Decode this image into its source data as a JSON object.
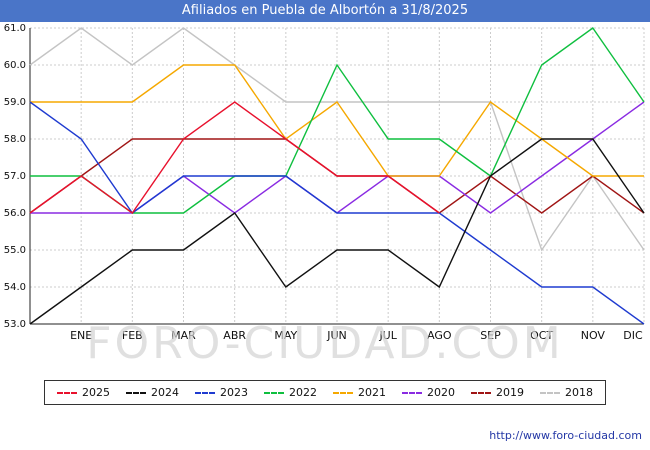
{
  "title": "Afiliados en Puebla de Albortón a 31/8/2025",
  "watermark": "FORO-CIUDAD.COM",
  "footer": {
    "url_label": "http://www.foro-ciudad.com"
  },
  "chart_data": {
    "type": "line",
    "title": "Afiliados en Puebla de Albortón a 31/8/2025",
    "categories": [
      "ENE",
      "FEB",
      "MAR",
      "ABR",
      "MAY",
      "JUN",
      "JUL",
      "AGO",
      "SEP",
      "OCT",
      "NOV",
      "DIC"
    ],
    "ylim": [
      53,
      61
    ],
    "ytick_step": 1,
    "ytick_decimals": 1,
    "grid": true,
    "legend_position": "bottom",
    "series": [
      {
        "name": "2025",
        "color": "#e8112d",
        "start_value": 56,
        "values": [
          57,
          56,
          58,
          59,
          58,
          57,
          57,
          56,
          null,
          null,
          null,
          null
        ]
      },
      {
        "name": "2024",
        "color": "#111111",
        "start_value": 53,
        "values": [
          54,
          55,
          55,
          56,
          54,
          55,
          55,
          54,
          57,
          58,
          58,
          56
        ]
      },
      {
        "name": "2023",
        "color": "#1f3bd0",
        "start_value": 59,
        "values": [
          58,
          56,
          57,
          57,
          57,
          56,
          56,
          56,
          55,
          54,
          54,
          53
        ]
      },
      {
        "name": "2022",
        "color": "#0fbf3f",
        "start_value": 57,
        "values": [
          57,
          56,
          56,
          57,
          57,
          60,
          58,
          58,
          57,
          60,
          61,
          59
        ]
      },
      {
        "name": "2021",
        "color": "#f5a800",
        "start_value": 59,
        "values": [
          59,
          59,
          60,
          60,
          58,
          59,
          57,
          57,
          59,
          58,
          57,
          57
        ]
      },
      {
        "name": "2020",
        "color": "#8a2be2",
        "start_value": 56,
        "values": [
          56,
          56,
          57,
          56,
          57,
          56,
          57,
          57,
          56,
          57,
          58,
          59
        ]
      },
      {
        "name": "2019",
        "color": "#a01515",
        "start_value": 56,
        "values": [
          57,
          58,
          58,
          58,
          58,
          57,
          57,
          56,
          57,
          56,
          57,
          56
        ]
      },
      {
        "name": "2018",
        "color": "#c4c4c4",
        "start_value": 60,
        "values": [
          61,
          60,
          61,
          60,
          59,
          59,
          59,
          59,
          59,
          55,
          57,
          55
        ]
      }
    ]
  }
}
